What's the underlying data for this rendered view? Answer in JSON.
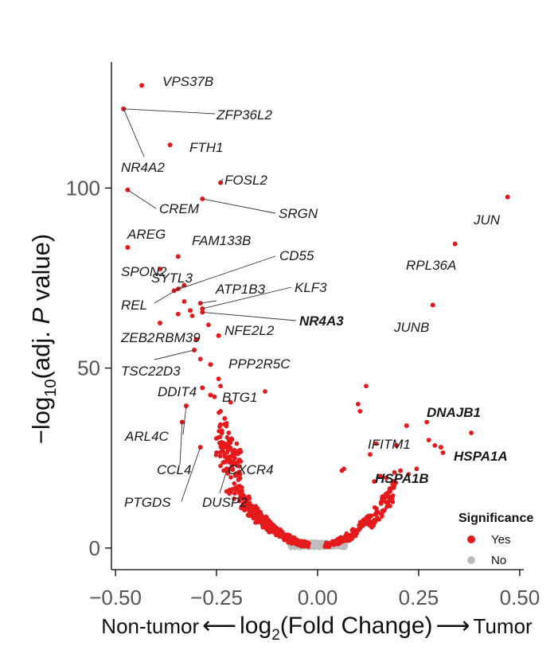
{
  "chart_data": {
    "type": "scatter",
    "title": "",
    "xlabel": {
      "left": "Non-tumor",
      "main": "log",
      "sub": "2",
      "tail": "(Fold Change)",
      "right": "Tumor"
    },
    "ylabel": {
      "pre": "−log",
      "sub": "10",
      "mid": "(adj. ",
      "italic": "P",
      "post": " value)"
    },
    "xlim": [
      -0.51,
      0.51
    ],
    "ylim": [
      -6,
      135
    ],
    "x_ticks": [
      -0.5,
      -0.25,
      0.0,
      0.25,
      0.5
    ],
    "x_tick_labels": [
      "−0.50",
      "−0.25",
      "0.00",
      "0.25",
      "0.50"
    ],
    "y_ticks": [
      0,
      50,
      100
    ],
    "y_tick_labels": [
      "0",
      "50",
      "100"
    ],
    "grid": false,
    "legend": {
      "title": "Significance",
      "position": "bottom-right",
      "entries": [
        {
          "label": "Yes",
          "color": "#e41a1c"
        },
        {
          "label": "No",
          "color": "#bdbdbd"
        }
      ]
    },
    "colors": {
      "significant": "#e41a1c",
      "not_significant": "#bdbdbd"
    },
    "labeled_points": [
      {
        "gene": "VPS37B",
        "x": -0.435,
        "y": 128.5,
        "bold": false
      },
      {
        "gene": "ZFP36L2",
        "x": -0.48,
        "y": 122.0,
        "bold": false
      },
      {
        "gene": "FTH1",
        "x": -0.365,
        "y": 112.0,
        "bold": false
      },
      {
        "gene": "NR4A2",
        "x": -0.48,
        "y": 122.0,
        "bold": false
      },
      {
        "gene": "FOSL2",
        "x": -0.24,
        "y": 101.5,
        "bold": false
      },
      {
        "gene": "CREM",
        "x": -0.47,
        "y": 99.5,
        "bold": false
      },
      {
        "gene": "SRGN",
        "x": -0.285,
        "y": 97.0,
        "bold": false
      },
      {
        "gene": "JUN",
        "x": 0.47,
        "y": 97.5,
        "bold": false
      },
      {
        "gene": "AREG",
        "x": -0.47,
        "y": 83.5,
        "bold": false
      },
      {
        "gene": "FAM133B",
        "x": -0.345,
        "y": 81.0,
        "bold": false
      },
      {
        "gene": "CD55",
        "x": -0.355,
        "y": 71.5,
        "bold": false
      },
      {
        "gene": "RPL36A",
        "x": 0.34,
        "y": 84.5,
        "bold": false
      },
      {
        "gene": "SPON2",
        "x": -0.39,
        "y": 77.5,
        "bold": false
      },
      {
        "gene": "SYTL3",
        "x": -0.345,
        "y": 72.0,
        "bold": false
      },
      {
        "gene": "KLF3",
        "x": -0.285,
        "y": 66.5,
        "bold": false
      },
      {
        "gene": "ATP1B3",
        "x": -0.29,
        "y": 68.0,
        "bold": false
      },
      {
        "gene": "REL",
        "x": -0.33,
        "y": 73.0,
        "bold": false
      },
      {
        "gene": "NR4A3",
        "x": -0.285,
        "y": 65.5,
        "bold": true
      },
      {
        "gene": "JUNB",
        "x": 0.285,
        "y": 67.5,
        "bold": false
      },
      {
        "gene": "ZEB2",
        "x": -0.39,
        "y": 62.5,
        "bold": false
      },
      {
        "gene": "RBM39",
        "x": -0.315,
        "y": 66.0,
        "bold": false
      },
      {
        "gene": "NFE2L2",
        "x": -0.245,
        "y": 59.0,
        "bold": false
      },
      {
        "gene": "TSC22D3",
        "x": -0.305,
        "y": 55.0,
        "bold": false
      },
      {
        "gene": "PPP2R5C",
        "x": -0.265,
        "y": 51.0,
        "bold": false
      },
      {
        "gene": "DDIT4",
        "x": -0.285,
        "y": 44.5,
        "bold": false
      },
      {
        "gene": "BTG1",
        "x": -0.265,
        "y": 42.5,
        "bold": false
      },
      {
        "gene": "DNAJB1",
        "x": 0.22,
        "y": 34.0,
        "bold": true
      },
      {
        "gene": "ARL4C",
        "x": -0.325,
        "y": 39.5,
        "bold": false
      },
      {
        "gene": "IFITM1",
        "x": 0.195,
        "y": 28.5,
        "bold": false
      },
      {
        "gene": "HSPA1A",
        "x": 0.305,
        "y": 28.0,
        "bold": true
      },
      {
        "gene": "CCL4",
        "x": -0.335,
        "y": 35.0,
        "bold": false
      },
      {
        "gene": "CXCR4",
        "x": -0.225,
        "y": 22.0,
        "bold": false
      },
      {
        "gene": "HSPA1B",
        "x": 0.205,
        "y": 21.5,
        "bold": true
      },
      {
        "gene": "PTGDS",
        "x": -0.29,
        "y": 28.0,
        "bold": false
      },
      {
        "gene": "DUSP2",
        "x": -0.225,
        "y": 21.5,
        "bold": false
      }
    ],
    "extra_points": [
      [
        -0.33,
        68.5
      ],
      [
        -0.31,
        64.5
      ],
      [
        -0.3,
        58.0
      ],
      [
        -0.27,
        62.0
      ],
      [
        -0.13,
        43.5
      ],
      [
        0.12,
        45.0
      ],
      [
        0.105,
        38.0
      ],
      [
        0.1,
        40.0
      ],
      [
        0.275,
        30.0
      ],
      [
        0.38,
        32.0
      ],
      [
        0.27,
        35.0
      ],
      [
        0.29,
        28.5
      ],
      [
        0.31,
        26.5
      ],
      [
        0.245,
        22.0
      ],
      [
        0.225,
        20.5
      ],
      [
        0.155,
        20.0
      ],
      [
        0.14,
        18.5
      ],
      [
        0.17,
        19.5
      ],
      [
        0.06,
        21.5
      ],
      [
        0.065,
        22.0
      ],
      [
        -0.245,
        47.0
      ],
      [
        -0.255,
        42.0
      ],
      [
        -0.24,
        38.0
      ],
      [
        -0.23,
        36.0
      ],
      [
        -0.22,
        32.0
      ],
      [
        -0.25,
        26.5
      ],
      [
        -0.2,
        29.0
      ],
      [
        -0.195,
        27.0
      ],
      [
        0.13,
        26.0
      ],
      [
        0.145,
        29.0
      ],
      [
        -0.345,
        65.0
      ],
      [
        -0.29,
        52.5
      ],
      [
        -0.24,
        45.0
      ],
      [
        -0.215,
        40.5
      ],
      [
        0.19,
        21.0
      ]
    ],
    "cloud": {
      "significant_count": 700,
      "nonsignificant_count": 340,
      "seed": 7
    }
  }
}
